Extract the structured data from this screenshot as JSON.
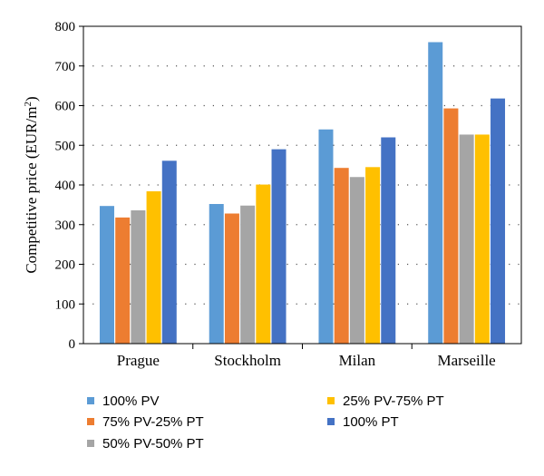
{
  "chart_data": {
    "type": "bar",
    "title": "",
    "xlabel": "",
    "ylabel": {
      "main": "Competitive price (EUR/m",
      "sup": "2",
      "close": ")"
    },
    "ylim": [
      0,
      800
    ],
    "yticks": [
      0,
      100,
      200,
      300,
      400,
      500,
      600,
      700,
      800
    ],
    "grid": "horizontal-dotted",
    "legend_placement": "bottom",
    "categories": [
      "Prague",
      "Stockholm",
      "Milan",
      "Marseille"
    ],
    "series": [
      {
        "name": "100% PV",
        "color": "#5B9BD5",
        "values": [
          347,
          352,
          540,
          760
        ]
      },
      {
        "name": "75% PV-25% PT",
        "color": "#ED7D31",
        "values": [
          318,
          328,
          443,
          593
        ]
      },
      {
        "name": "50% PV-50% PT",
        "color": "#A5A5A5",
        "values": [
          336,
          348,
          420,
          527
        ]
      },
      {
        "name": "25% PV-75% PT",
        "color": "#FFC000",
        "values": [
          384,
          401,
          445,
          527
        ]
      },
      {
        "name": "100% PT",
        "color": "#4472C4",
        "values": [
          461,
          490,
          520,
          618
        ]
      }
    ]
  }
}
